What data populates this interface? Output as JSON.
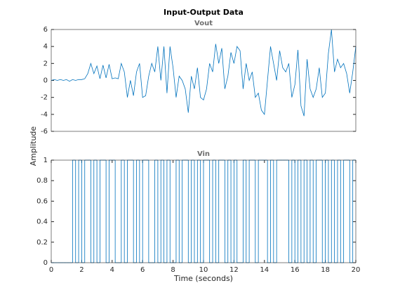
{
  "title": "Input-Output Data",
  "ylabel": "Amplitude",
  "xlabel": "Time (seconds)",
  "chart_data": [
    {
      "type": "line",
      "title": "Vout",
      "x": [
        0,
        0.2,
        0.4,
        0.6,
        0.8,
        1,
        1.2,
        1.4,
        1.6,
        1.8,
        2,
        2.2,
        2.4,
        2.6,
        2.8,
        3,
        3.2,
        3.4,
        3.6,
        3.8,
        4,
        4.2,
        4.4,
        4.6,
        4.8,
        5,
        5.2,
        5.4,
        5.6,
        5.8,
        6,
        6.2,
        6.4,
        6.6,
        6.8,
        7,
        7.2,
        7.4,
        7.6,
        7.8,
        8,
        8.2,
        8.4,
        8.6,
        8.8,
        9,
        9.2,
        9.4,
        9.6,
        9.8,
        10,
        10.2,
        10.4,
        10.6,
        10.8,
        11,
        11.2,
        11.4,
        11.6,
        11.8,
        12,
        12.2,
        12.4,
        12.6,
        12.8,
        13,
        13.2,
        13.4,
        13.6,
        13.8,
        14,
        14.2,
        14.4,
        14.6,
        14.8,
        15,
        15.2,
        15.4,
        15.6,
        15.8,
        16,
        16.2,
        16.4,
        16.6,
        16.8,
        17,
        17.2,
        17.4,
        17.6,
        17.8,
        18,
        18.2,
        18.4,
        18.6,
        18.8,
        19,
        19.2,
        19.4,
        19.6,
        19.8,
        20
      ],
      "series": [
        {
          "color": "#0072bd",
          "values": [
            0,
            0.1,
            0,
            0.1,
            0,
            0.1,
            -0.1,
            0.1,
            0,
            0.1,
            0.1,
            0.2,
            0.8,
            2,
            0.8,
            1.7,
            0.2,
            1.8,
            0.3,
            1.9,
            0.2,
            0.3,
            0.2,
            2,
            1,
            -2,
            0,
            -1.8,
            1,
            2,
            -2,
            -1.8,
            0.5,
            2,
            1,
            4,
            0,
            4,
            -1.5,
            4,
            1.5,
            -2,
            0.5,
            0,
            -1,
            -3.8,
            0.5,
            -1,
            1.5,
            -2,
            -2.3,
            -1,
            2,
            1,
            4.3,
            2,
            3.8,
            -1,
            0.5,
            3.3,
            2,
            4,
            3.5,
            -1,
            2,
            0,
            1,
            -2,
            -1.5,
            -3.5,
            -4,
            0,
            4,
            2,
            0,
            3.5,
            1.5,
            1,
            2,
            -2,
            -0.5,
            3.6,
            -3,
            -4.2,
            2.5,
            -1,
            -2,
            -1,
            1.5,
            -2,
            -1.5,
            3.2,
            6,
            1,
            2.5,
            1.5,
            2,
            0.8,
            -1.5,
            1,
            4
          ]
        }
      ],
      "xlim": [
        0,
        20
      ],
      "ylim": [
        -6,
        6
      ],
      "yticks": [
        -6,
        -4,
        -2,
        0,
        2,
        4,
        6
      ]
    },
    {
      "type": "stairs",
      "title": "Vin",
      "x": [
        0,
        0.2,
        0.4,
        0.6,
        0.8,
        1,
        1.2,
        1.4,
        1.6,
        1.8,
        2,
        2.2,
        2.4,
        2.6,
        2.8,
        3,
        3.2,
        3.4,
        3.6,
        3.8,
        4,
        4.2,
        4.4,
        4.6,
        4.8,
        5,
        5.2,
        5.4,
        5.6,
        5.8,
        6,
        6.2,
        6.4,
        6.6,
        6.8,
        7,
        7.2,
        7.4,
        7.6,
        7.8,
        8,
        8.2,
        8.4,
        8.6,
        8.8,
        9,
        9.2,
        9.4,
        9.6,
        9.8,
        10,
        10.2,
        10.4,
        10.6,
        10.8,
        11,
        11.2,
        11.4,
        11.6,
        11.8,
        12,
        12.2,
        12.4,
        12.6,
        12.8,
        13,
        13.2,
        13.4,
        13.6,
        13.8,
        14,
        14.2,
        14.4,
        14.6,
        14.8,
        15,
        15.2,
        15.4,
        15.6,
        15.8,
        16,
        16.2,
        16.4,
        16.6,
        16.8,
        17,
        17.2,
        17.4,
        17.6,
        17.8,
        18,
        18.2,
        18.4,
        18.6,
        18.8,
        19,
        19.2,
        19.4,
        19.6,
        19.8,
        20
      ],
      "series": [
        {
          "color": "#0072bd",
          "values": [
            0,
            0,
            0,
            0,
            0,
            0,
            0,
            1,
            0,
            1,
            0,
            1,
            1,
            0,
            1,
            0,
            1,
            1,
            0,
            1,
            1,
            0,
            0,
            1,
            0,
            1,
            1,
            0,
            1,
            0,
            1,
            1,
            0,
            0,
            1,
            0,
            1,
            0,
            1,
            0,
            0,
            1,
            0,
            1,
            1,
            0,
            1,
            0,
            1,
            0,
            1,
            1,
            0,
            1,
            0,
            1,
            1,
            0,
            1,
            0,
            1,
            0,
            0,
            1,
            0,
            1,
            1,
            0,
            1,
            1,
            1,
            0,
            1,
            0,
            1,
            1,
            1,
            1,
            0,
            1,
            0,
            1,
            0,
            1,
            0,
            1,
            0,
            1,
            1,
            0,
            1,
            0,
            1,
            0,
            1,
            0,
            1,
            1,
            0,
            1,
            1
          ]
        }
      ],
      "xlim": [
        0,
        20
      ],
      "ylim": [
        0,
        1
      ],
      "xticks": [
        0,
        2,
        4,
        6,
        8,
        10,
        12,
        14,
        16,
        18,
        20
      ],
      "yticks": [
        0,
        0.2,
        0.4,
        0.6,
        0.8,
        1
      ]
    }
  ]
}
